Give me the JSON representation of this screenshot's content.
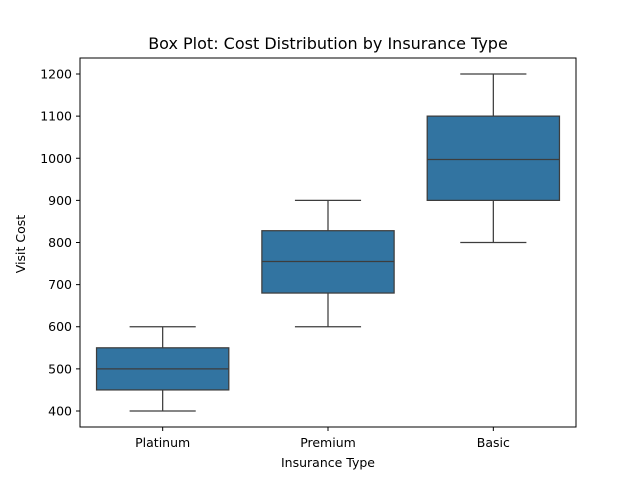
{
  "chart_data": {
    "type": "box",
    "title": "Box Plot: Cost Distribution by Insurance Type",
    "xlabel": "Insurance Type",
    "ylabel": "Visit Cost",
    "ylim": [
      362,
      1238
    ],
    "yticks": [
      400,
      500,
      600,
      700,
      800,
      900,
      1000,
      1100,
      1200
    ],
    "grid": false,
    "legend": "none",
    "color": "#3274a1",
    "edge_color": "#3d3d3d",
    "categories": [
      "Platinum",
      "Premium",
      "Basic"
    ],
    "boxes": [
      {
        "category": "Platinum",
        "whisker_low": 400,
        "q1": 450,
        "median": 500,
        "q3": 550,
        "whisker_high": 600
      },
      {
        "category": "Premium",
        "whisker_low": 600,
        "q1": 680,
        "median": 755,
        "q3": 828,
        "whisker_high": 900
      },
      {
        "category": "Basic",
        "whisker_low": 800,
        "q1": 900,
        "median": 997,
        "q3": 1100,
        "whisker_high": 1200
      }
    ]
  }
}
